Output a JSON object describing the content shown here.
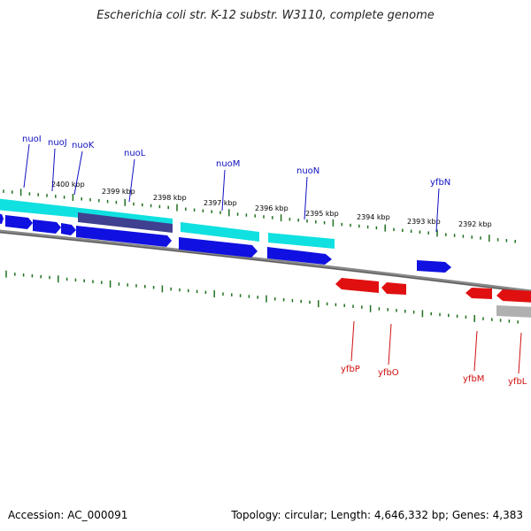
{
  "title": "Escherichia coli str. K-12 substr. W3110, complete genome",
  "footer": {
    "accession": "Accession: AC_000091",
    "topology": "Topology: circular; Length: 4,646,332 bp; Genes: 4,383"
  },
  "colors": {
    "forward_gene": "#1010e0",
    "reverse_gene": "#e01010",
    "cds_forward": "#10e0e0",
    "cds_forward_dark": "#404090",
    "cds_reverse": "#b0b0b0",
    "backbone": "#888888",
    "ticks": "#207020",
    "forward_label": "#1010c0",
    "reverse_label": "#d01010"
  },
  "tick_labels": [
    "2400 kbp",
    "2399 kbp",
    "2398 kbp",
    "2397 kbp",
    "2396 kbp",
    "2395 kbp",
    "2394 kbp",
    "2393 kbp",
    "2392 kbp"
  ],
  "forward_genes": [
    "nuoI",
    "nuoJ",
    "nuoK",
    "nuoL",
    "nuoM",
    "nuoN",
    "yfbN"
  ],
  "reverse_genes": [
    "yfbP",
    "yfbO",
    "yfbM",
    "yfbL"
  ]
}
